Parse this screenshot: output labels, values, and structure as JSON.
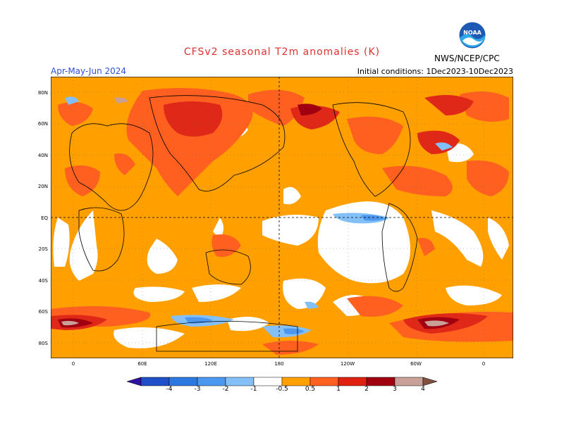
{
  "title": "CFSv2 seasonal T2m anomalies (K)",
  "season": "Apr-May-Jun 2024",
  "initial_conditions": "Initial conditions: 1Dec2023-10Dec2023",
  "agency": "NWS/NCEP/CPC",
  "logo_text": "NOAA",
  "lat_labels": [
    "80N",
    "60N",
    "40N",
    "20N",
    "EQ",
    "20S",
    "40S",
    "60S",
    "80S"
  ],
  "lon_labels": [
    "0",
    "60E",
    "120E",
    "180",
    "120W",
    "60W",
    "0"
  ],
  "colorbar": {
    "labels": [
      "-4",
      "-3",
      "-2",
      "-1",
      "-0.5",
      "0.5",
      "1",
      "2",
      "3",
      "4"
    ],
    "colors": [
      "#3010a0",
      "#2050c8",
      "#2c78e0",
      "#4c98f0",
      "#84c0f8",
      "#ffffff",
      "#ffa000",
      "#ff6020",
      "#e02010",
      "#a00010",
      "#c8a098",
      "#805040"
    ]
  },
  "colors": {
    "land_line": "#000000",
    "warm1": "#ffa000",
    "warm2": "#ff6020",
    "warm3": "#e02818",
    "warm4": "#a00010",
    "warm5": "#c8a098",
    "cool1": "#84c0f8",
    "cool2": "#4c98f0",
    "neutral": "#ffffff"
  }
}
